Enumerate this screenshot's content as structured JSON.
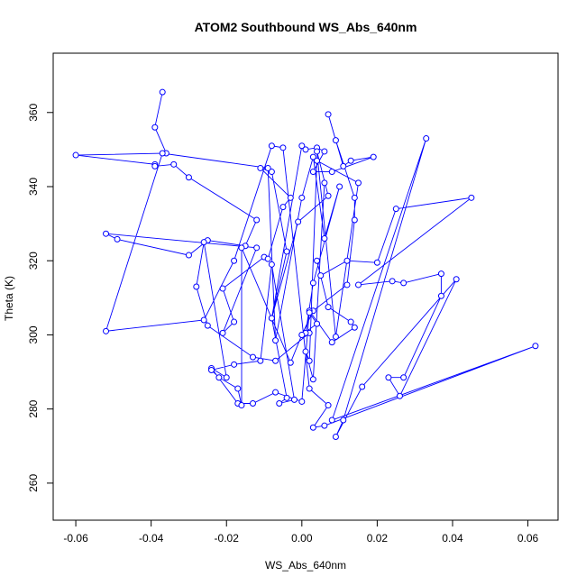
{
  "chart_data": {
    "type": "line",
    "title": "ATOM2 Southbound WS_Abs_640nm",
    "xlabel": "WS_Abs_640nm",
    "ylabel": "Theta (K)",
    "xlim": [
      -0.066,
      0.068
    ],
    "ylim": [
      250,
      376
    ],
    "x_ticks": [
      -0.06,
      -0.04,
      -0.02,
      0.0,
      0.02,
      0.04,
      0.06
    ],
    "x_tick_labels": [
      "-0.06",
      "-0.04",
      "-0.02",
      "0.00",
      "0.02",
      "0.04",
      "0.06"
    ],
    "y_ticks": [
      260,
      280,
      300,
      320,
      340,
      360
    ],
    "y_tick_labels": [
      "260",
      "280",
      "300",
      "320",
      "340",
      "360"
    ],
    "grid": false,
    "legend": "none",
    "marker": "open-circle",
    "color": "#0000ff",
    "series": [
      {
        "x": [
          -0.037,
          -0.039,
          -0.036,
          -0.06,
          -0.039,
          -0.039,
          -0.034,
          -0.03,
          -0.012,
          -0.015,
          -0.025,
          -0.03,
          -0.049,
          -0.052,
          -0.012,
          -0.021,
          -0.018,
          -0.021,
          -0.01,
          -0.009,
          -0.005,
          -0.003,
          -0.011,
          -0.008,
          -0.004,
          -0.008,
          0.0,
          0.001,
          0.004,
          0.006,
          0.003,
          0.008,
          0.019,
          0.013,
          0.011,
          0.007,
          0.009,
          0.014,
          0.014,
          0.012,
          0.003,
          0.0,
          0.002,
          -0.007,
          -0.013,
          -0.025,
          -0.028,
          -0.026,
          -0.02,
          -0.024,
          -0.017,
          -0.013,
          -0.007,
          0.0,
          0.002,
          0.008,
          0.014,
          0.013,
          0.007,
          0.004,
          0.005,
          0.012,
          0.02,
          0.025,
          0.045,
          0.015,
          0.024,
          0.027,
          0.037,
          0.037,
          0.027,
          0.023,
          0.026,
          0.041,
          0.016,
          0.009,
          0.011,
          0.033,
          0.008,
          0.062,
          0.006,
          0.003,
          0.007,
          0.002,
          -0.005,
          -0.008,
          -0.018,
          -0.026,
          -0.052,
          -0.037,
          -0.009,
          -0.007,
          0.0,
          0.003,
          0.006,
          0.01,
          0.003,
          0.001,
          0.002,
          0.004,
          0.0,
          -0.003,
          -0.016,
          -0.016,
          -0.017,
          -0.022,
          -0.024,
          -0.018,
          -0.011,
          -0.008,
          -0.002,
          -0.006,
          -0.004,
          -0.008,
          -0.001,
          0.007,
          0.004,
          0.009,
          0.015,
          0.004,
          0.002,
          0.001,
          0.003,
          0.006
        ],
        "y": [
          365.5,
          356.0,
          349.0,
          348.5,
          346.0,
          345.5,
          346.0,
          342.5,
          331.0,
          324.0,
          325.5,
          321.5,
          325.8,
          327.3,
          323.5,
          300.5,
          303.5,
          312.5,
          321.0,
          320.5,
          334.5,
          337.0,
          345.0,
          344.0,
          322.5,
          304.5,
          351.0,
          350.0,
          350.5,
          349.5,
          344.0,
          344.0,
          348.0,
          347.0,
          345.5,
          359.5,
          352.5,
          337.0,
          331.0,
          313.5,
          306.5,
          300.0,
          300.5,
          293.0,
          294.0,
          302.5,
          313.0,
          325.0,
          288.5,
          291.0,
          281.5,
          281.5,
          284.5,
          282.0,
          306.5,
          298.0,
          302.0,
          303.5,
          307.5,
          320.0,
          316.0,
          320.0,
          319.5,
          334.0,
          337.0,
          313.5,
          314.5,
          314.0,
          316.5,
          310.5,
          288.5,
          288.5,
          283.5,
          315.0,
          286.0,
          272.5,
          277.0,
          353.0,
          277.0,
          297.0,
          275.5,
          275.0,
          281.0,
          285.5,
          350.5,
          351.0,
          320.0,
          304.0,
          301.0,
          349.0,
          345.0,
          298.5,
          337.0,
          348.0,
          326.0,
          340.0,
          314.0,
          300.5,
          306.0,
          303.0,
          300.0,
          292.5,
          323.5,
          281.0,
          285.5,
          288.5,
          290.5,
          292.0,
          293.0,
          319.0,
          282.5,
          281.5,
          283.0,
          304.5,
          330.5,
          337.5,
          349.5,
          299.5,
          341.0,
          347.0,
          293.0,
          295.5,
          288.0,
          341.0
        ]
      }
    ]
  }
}
